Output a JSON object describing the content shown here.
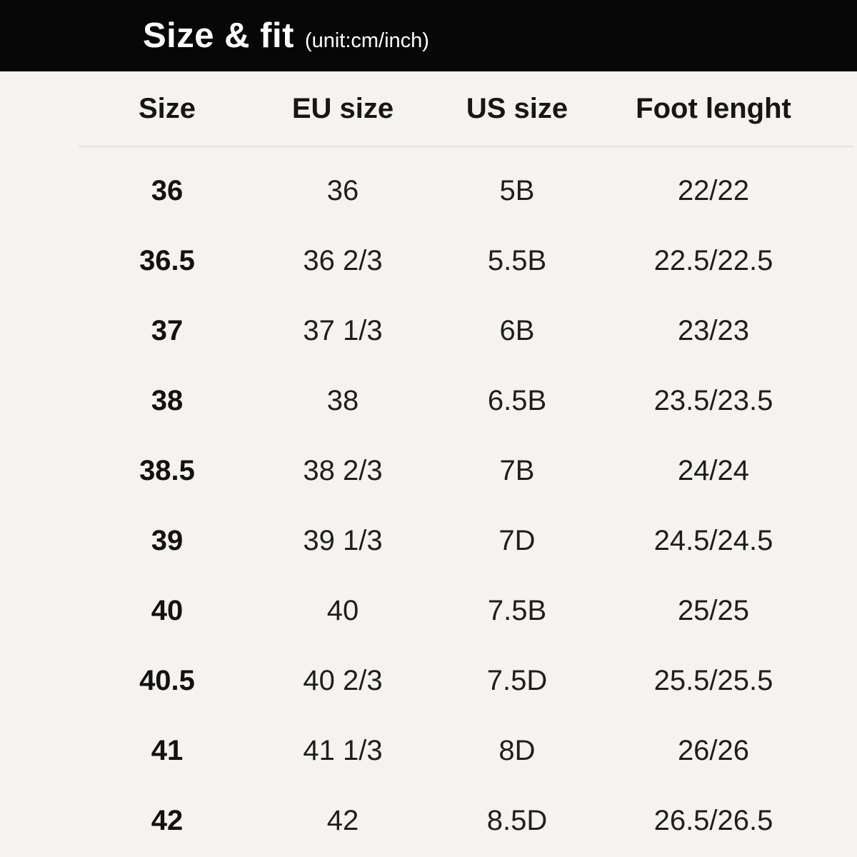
{
  "header": {
    "title": "Size & fit",
    "subtitle": "(unit:cm/inch)"
  },
  "table": {
    "columns": [
      "Size",
      "EU size",
      "US size",
      "Foot lenght"
    ],
    "rows": [
      [
        "36",
        "36",
        "5B",
        "22/22"
      ],
      [
        "36.5",
        "36 2/3",
        "5.5B",
        "22.5/22.5"
      ],
      [
        "37",
        "37 1/3",
        "6B",
        "23/23"
      ],
      [
        "38",
        "38",
        "6.5B",
        "23.5/23.5"
      ],
      [
        "38.5",
        "38 2/3",
        "7B",
        "24/24"
      ],
      [
        "39",
        "39 1/3",
        "7D",
        "24.5/24.5"
      ],
      [
        "40",
        "40",
        "7.5B",
        "25/25"
      ],
      [
        "40.5",
        "40 2/3",
        "7.5D",
        "25.5/25.5"
      ],
      [
        "41",
        "41 1/3",
        "8D",
        "26/26"
      ],
      [
        "42",
        "42",
        "8.5D",
        "26.5/26.5"
      ]
    ]
  },
  "colors": {
    "header_bg": "#070707",
    "header_text": "#ffffff",
    "page_bg": "#f4f3f1",
    "text": "#1e1e1e",
    "divider": "#e3e2e0"
  },
  "chart_data": {
    "type": "table",
    "title": "Size & fit",
    "subtitle": "(unit:cm/inch)",
    "columns": [
      "Size",
      "EU size",
      "US size",
      "Foot lenght"
    ],
    "rows": [
      [
        "36",
        "36",
        "5B",
        "22/22"
      ],
      [
        "36.5",
        "36 2/3",
        "5.5B",
        "22.5/22.5"
      ],
      [
        "37",
        "37 1/3",
        "6B",
        "23/23"
      ],
      [
        "38",
        "38",
        "6.5B",
        "23.5/23.5"
      ],
      [
        "38.5",
        "38 2/3",
        "7B",
        "24/24"
      ],
      [
        "39",
        "39 1/3",
        "7D",
        "24.5/24.5"
      ],
      [
        "40",
        "40",
        "7.5B",
        "25/25"
      ],
      [
        "40.5",
        "40 2/3",
        "7.5D",
        "25.5/25.5"
      ],
      [
        "41",
        "41 1/3",
        "8D",
        "26/26"
      ],
      [
        "42",
        "42",
        "8.5D",
        "26.5/26.5"
      ]
    ]
  }
}
